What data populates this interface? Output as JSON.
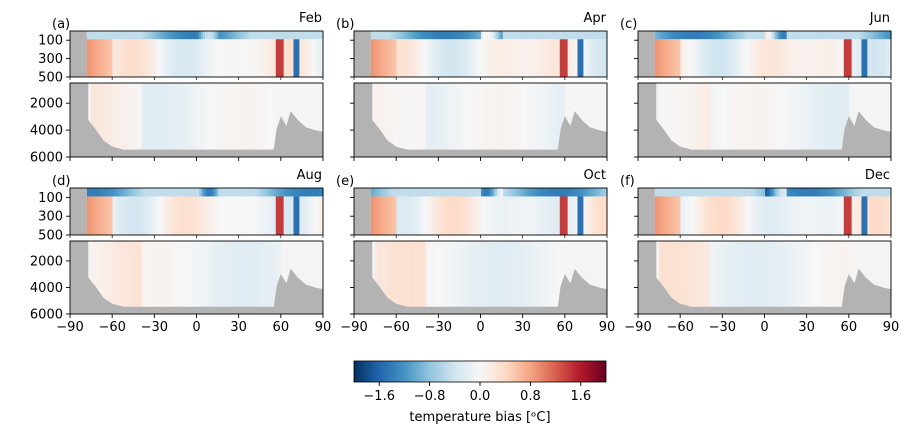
{
  "chart_data": {
    "type": "heatmap",
    "description_free": true,
    "x_ticks": [
      -90,
      -60,
      -30,
      0,
      30,
      60,
      90
    ],
    "xlim": [
      -90,
      90
    ],
    "upper_ylim": [
      500,
      0
    ],
    "upper_yticks": [
      100,
      300,
      500
    ],
    "lower_ylim": [
      6000,
      500
    ],
    "lower_yticks": [
      2000,
      4000,
      6000
    ],
    "panels": [
      {
        "label": "(a)",
        "month": "Feb"
      },
      {
        "label": "(b)",
        "month": "Apr"
      },
      {
        "label": "(c)",
        "month": "Jun"
      },
      {
        "label": "(d)",
        "month": "Aug"
      },
      {
        "label": "(e)",
        "month": "Oct"
      },
      {
        "label": "(f)",
        "month": "Dec"
      }
    ],
    "colorbar": {
      "min": -2.0,
      "max": 2.0,
      "ticks": [
        -1.6,
        -0.8,
        0.0,
        0.8,
        1.6
      ],
      "tick_labels": [
        "−1.6",
        "−0.8",
        "0.0",
        "0.8",
        "1.6"
      ],
      "label": "temperature bias [ᵒC]",
      "colormap": "RdBu_r"
    },
    "land_color": "#b3b3b3"
  }
}
